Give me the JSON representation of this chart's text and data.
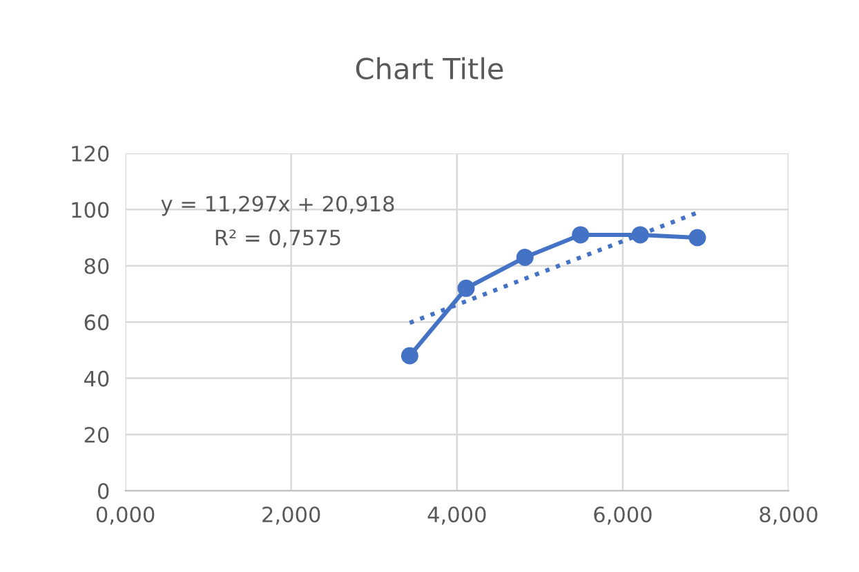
{
  "chart_data": {
    "type": "line",
    "title": "Chart Title",
    "annotations": [
      "y = 11,297x + 20,918",
      "R² = 0,7575"
    ],
    "series": [
      {
        "color": "#4472c4",
        "x": [
          3.43,
          4.11,
          4.82,
          5.49,
          6.21,
          6.9
        ],
        "values": [
          48,
          72,
          83,
          91,
          91,
          90
        ],
        "marker": "circle",
        "line_style": "solid"
      },
      {
        "type": "line",
        "color": "#4472c4",
        "x": [
          3.43,
          6.9
        ],
        "values": [
          59.7,
          98.9
        ],
        "marker": "none",
        "line_style": "dotted"
      }
    ],
    "xlim": [
      0,
      8
    ],
    "xticks": [
      {
        "value": 0,
        "label": "0,000"
      },
      {
        "value": 2,
        "label": "2,000"
      },
      {
        "value": 4,
        "label": "4,000"
      },
      {
        "value": 6,
        "label": "6,000"
      },
      {
        "value": 8,
        "label": "8,000"
      }
    ],
    "ylim": [
      0,
      120
    ],
    "yticks": [
      0,
      20,
      40,
      60,
      80,
      100,
      120
    ],
    "grid": true,
    "legend": false
  }
}
